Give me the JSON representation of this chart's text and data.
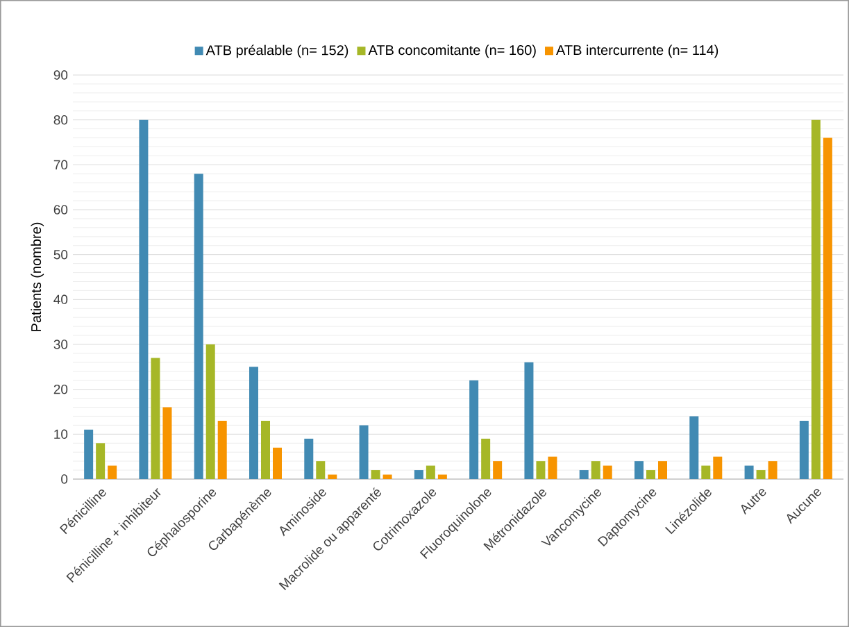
{
  "chart_data": {
    "type": "bar",
    "ylabel": "Patients (nombre)",
    "categories": [
      "Pénicilline",
      "Pénicilline + inhibiteur",
      "Céphalosporine",
      "Carbapénème",
      "Aminoside",
      "Macrolide ou apparenté",
      "Cotrimoxazole",
      "Fluoroquinolone",
      "Métronidazole",
      "Vancomycine",
      "Daptomycine",
      "Linézolide",
      "Autre",
      "Aucune"
    ],
    "series": [
      {
        "name": "ATB préalable (n= 152)",
        "color": "#418ab3",
        "values": [
          11,
          80,
          68,
          25,
          9,
          12,
          2,
          22,
          26,
          2,
          4,
          14,
          3,
          13
        ]
      },
      {
        "name": "ATB concomitante (n= 160)",
        "color": "#a6b727",
        "values": [
          8,
          27,
          30,
          13,
          4,
          2,
          3,
          9,
          4,
          4,
          2,
          3,
          2,
          80
        ]
      },
      {
        "name": "ATB intercurrente (n= 114)",
        "color": "#f79400",
        "values": [
          3,
          16,
          13,
          7,
          1,
          1,
          1,
          4,
          5,
          3,
          4,
          5,
          4,
          76
        ]
      }
    ],
    "ylim": [
      0,
      90
    ],
    "yticks": [
      0,
      10,
      20,
      30,
      40,
      50,
      60,
      70,
      80,
      90
    ],
    "grid": "y",
    "legend": "top"
  }
}
